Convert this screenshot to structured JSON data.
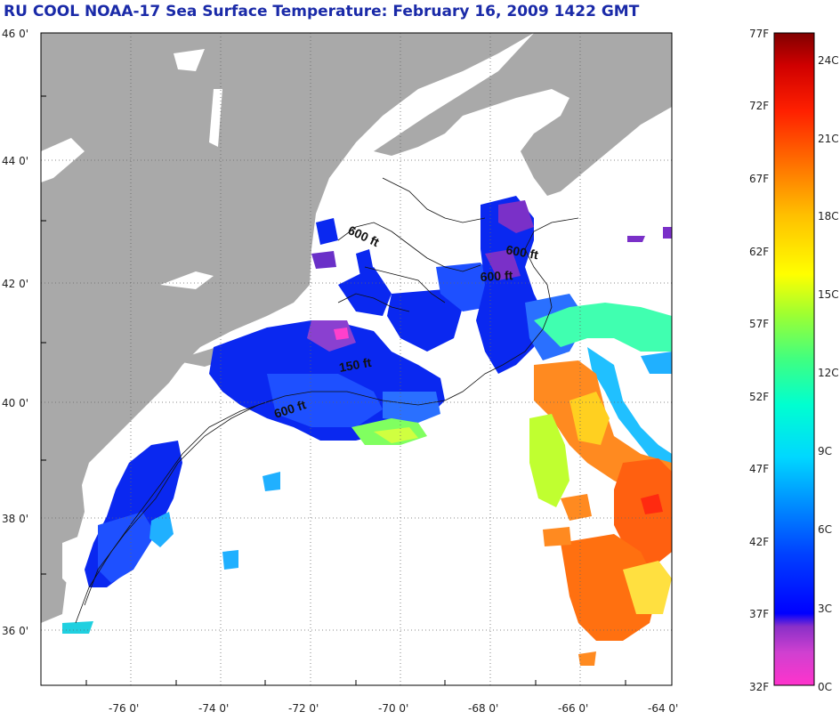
{
  "title": "RU COOL  NOAA-17  Sea Surface Temperature:  February 16, 2009 1422 GMT",
  "colors": {
    "land": "#a9a9a9",
    "water_bg": "#ffffff",
    "title_color": "#1a2aa8",
    "colorbar_stops": [
      "#ff33cc",
      "#b040c0",
      "#6a30c8",
      "#0010ff",
      "#0060ff",
      "#00b0ff",
      "#00ffee",
      "#40ff90",
      "#c0ff20",
      "#ffff00",
      "#ffb000",
      "#ff6000",
      "#ff1000",
      "#c00000",
      "#800000"
    ]
  },
  "map": {
    "lat_labels": [
      "46 0'",
      "44 0'",
      "42 0'",
      "40 0'",
      "38 0'",
      "36 0'"
    ],
    "lon_labels": [
      "-76 0'",
      "-74 0'",
      "-72 0'",
      "-70 0'",
      "-68 0'",
      "-66 0'",
      "-64 0'"
    ],
    "contour_labels": [
      "600 ft",
      "600 ft",
      "600 ft",
      "150 ft",
      "600 ft"
    ]
  },
  "colorbar": {
    "fahrenheit_labels": [
      "77F",
      "72F",
      "67F",
      "62F",
      "57F",
      "52F",
      "47F",
      "42F",
      "37F",
      "32F"
    ],
    "celsius_labels": [
      "24C",
      "21C",
      "18C",
      "15C",
      "12C",
      "9C",
      "6C",
      "3C",
      "0C"
    ],
    "range_f": [
      32,
      77
    ],
    "range_c": [
      0,
      25
    ]
  }
}
